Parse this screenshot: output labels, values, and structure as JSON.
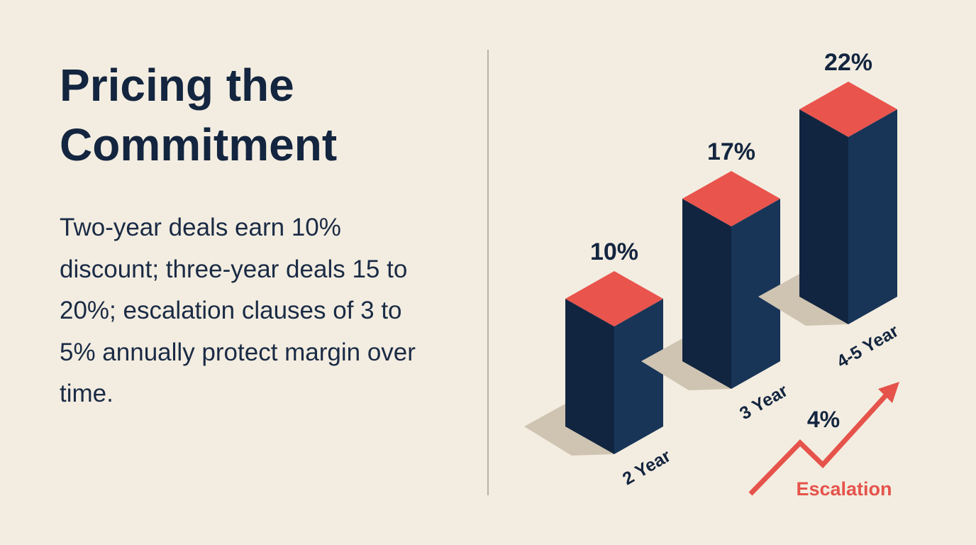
{
  "title": "Pricing the Commitment",
  "body": "Two-year deals earn 10% discount; three-year deals 15 to 20%; escalation clauses of 3 to 5% annually protect margin over time.",
  "chart_data": {
    "type": "bar",
    "style": "3d isometric",
    "categories": [
      "2 Year",
      "3 Year",
      "4-5 Year"
    ],
    "values": [
      10,
      17,
      22
    ],
    "value_labels": [
      "10%",
      "17%",
      "22%"
    ],
    "unit": "%",
    "grid": false,
    "legend": "none",
    "annotation": {
      "value_label": "4%",
      "label": "Escalation",
      "icon": "trend-up-arrow-icon"
    }
  },
  "colors": {
    "background": "#f3ede1",
    "bar_front_left": "#112540",
    "bar_front_right": "#183558",
    "bar_top": "#e9544d",
    "shadow": "#cfc4b2",
    "text": "#13253f",
    "accent": "#e5534b"
  }
}
